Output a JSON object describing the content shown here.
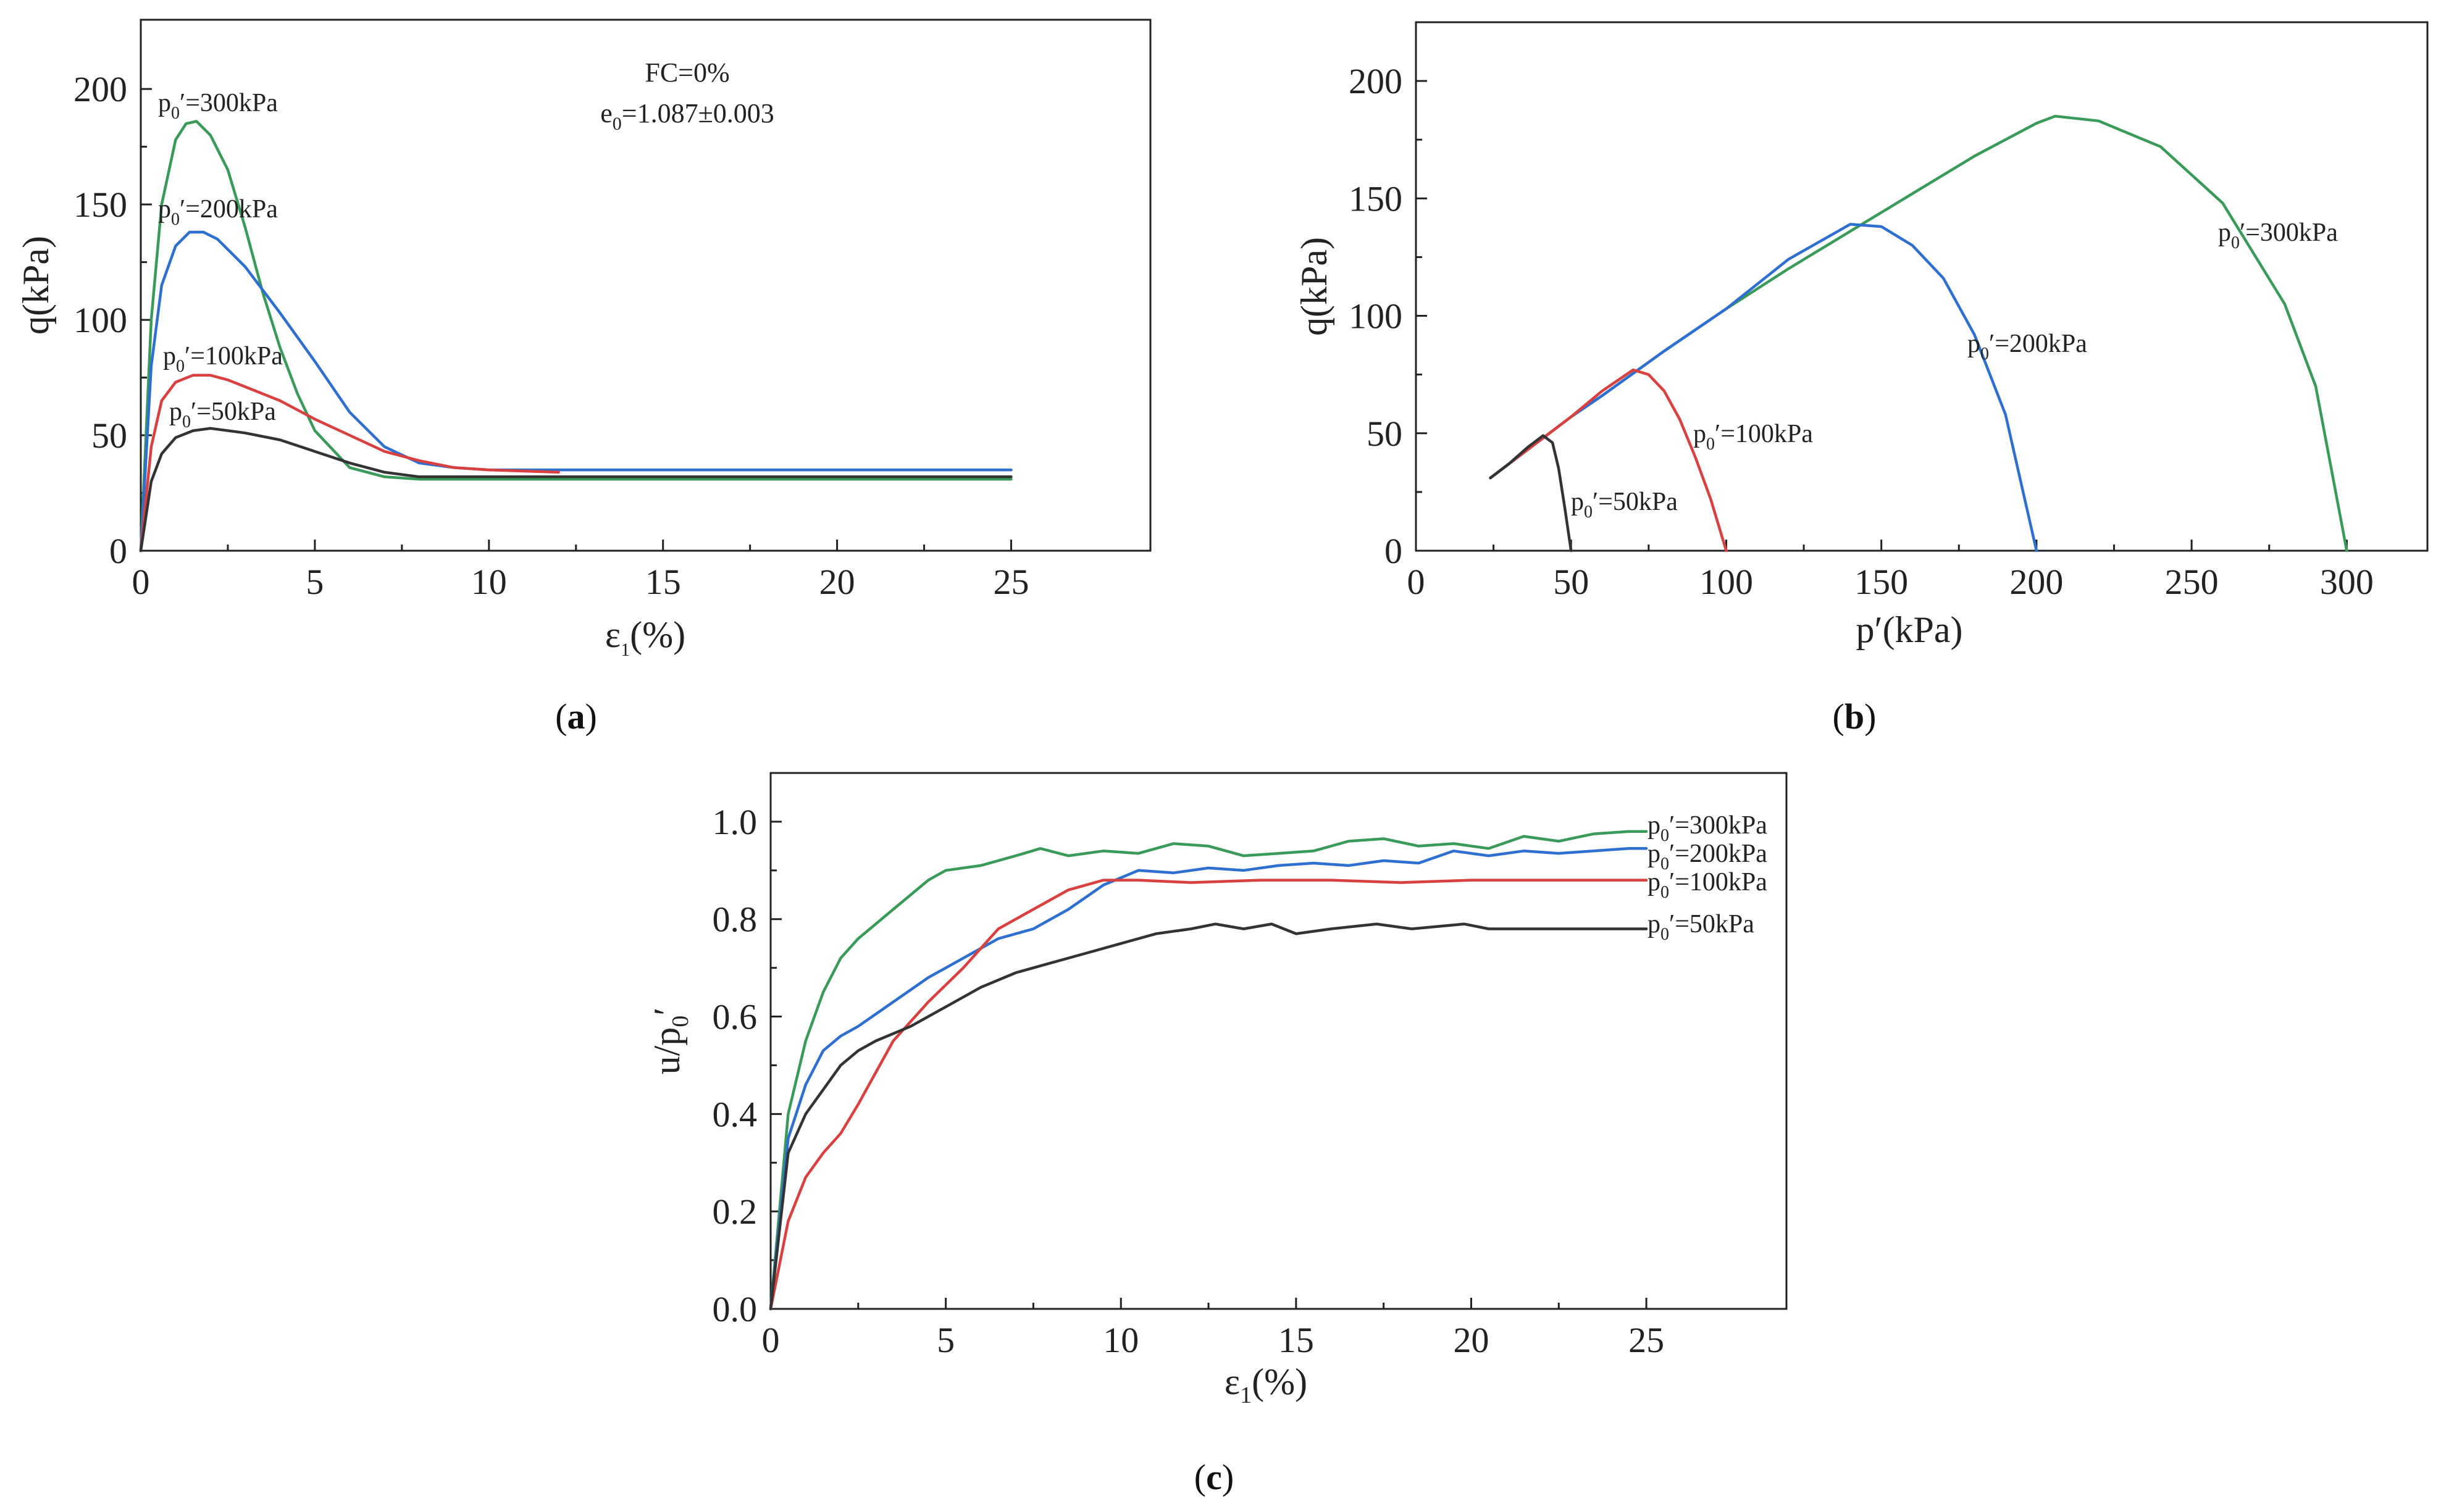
{
  "chart_data": [
    {
      "id": "a",
      "type": "line",
      "caption_letter": "a",
      "xlabel_main": "ε",
      "xlabel_sub": "1",
      "xlabel_tail": "(%)",
      "ylabel": "q(kPa)",
      "xlim": [
        0,
        29
      ],
      "ylim": [
        0,
        230
      ],
      "xticks": [
        0,
        5,
        10,
        15,
        20,
        25
      ],
      "yticks": [
        0,
        50,
        100,
        150,
        200
      ],
      "annotation_line1": "FC=0%",
      "annotation_line2_main": "e",
      "annotation_line2_sub": "0",
      "annotation_line2_tail": "=1.087±0.003",
      "series": [
        {
          "name": "p0'=300kPa",
          "label_main": "p",
          "label_sub": "0",
          "label_tail": "′=300kPa",
          "color": "#3a9a5a",
          "x": [
            0,
            0.3,
            0.6,
            1.0,
            1.3,
            1.6,
            2.0,
            2.5,
            3.0,
            3.5,
            4.0,
            4.5,
            5.0,
            6.0,
            7.0,
            8.0,
            10,
            15,
            20,
            25
          ],
          "y": [
            0,
            100,
            150,
            178,
            185,
            186,
            180,
            165,
            140,
            112,
            88,
            68,
            52,
            36,
            32,
            31,
            31,
            31,
            31,
            31
          ]
        },
        {
          "name": "p0'=200kPa",
          "label_main": "p",
          "label_sub": "0",
          "label_tail": "′=200kPa",
          "color": "#2e6fcf",
          "x": [
            0,
            0.3,
            0.6,
            1.0,
            1.4,
            1.8,
            2.2,
            3.0,
            4.0,
            5.0,
            6.0,
            7.0,
            8.0,
            9.0,
            10,
            12,
            15,
            20,
            25
          ],
          "y": [
            0,
            80,
            115,
            132,
            138,
            138,
            135,
            123,
            103,
            82,
            60,
            45,
            38,
            36,
            35,
            35,
            35,
            35,
            35
          ]
        },
        {
          "name": "p0'=100kPa",
          "label_main": "p",
          "label_sub": "0",
          "label_tail": "′=100kPa",
          "color": "#d94040",
          "x": [
            0,
            0.3,
            0.6,
            1.0,
            1.5,
            2.0,
            2.5,
            3.0,
            4.0,
            5.0,
            6.0,
            7.0,
            8.0,
            9.0,
            10,
            12
          ],
          "y": [
            0,
            45,
            65,
            73,
            76,
            76,
            74,
            71,
            65,
            57,
            50,
            43,
            39,
            36,
            35,
            34
          ]
        },
        {
          "name": "p0'=50kPa",
          "label_main": "p",
          "label_sub": "0",
          "label_tail": "′=50kPa",
          "color": "#333333",
          "x": [
            0,
            0.3,
            0.6,
            1.0,
            1.5,
            2.0,
            3.0,
            4.0,
            5.0,
            6.0,
            7.0,
            8.0,
            9.0,
            10,
            12,
            15,
            20,
            25
          ],
          "y": [
            0,
            30,
            42,
            49,
            52,
            53,
            51,
            48,
            43,
            38,
            34,
            32,
            32,
            32,
            32,
            32,
            32,
            32
          ]
        }
      ]
    },
    {
      "id": "b",
      "type": "line",
      "caption_letter": "b",
      "xlabel": "p′(kPa)",
      "ylabel": "q(kPa)",
      "xlim": [
        0,
        326
      ],
      "ylim": [
        0,
        225
      ],
      "xticks": [
        0,
        50,
        100,
        150,
        200,
        250,
        300
      ],
      "yticks": [
        0,
        50,
        100,
        150,
        200
      ],
      "series": [
        {
          "name": "p0'=300kPa",
          "label_main": "p",
          "label_sub": "0",
          "label_tail": "′=300kPa",
          "color": "#3a9a5a",
          "x": [
            24,
            30,
            40,
            50,
            60,
            80,
            100,
            120,
            140,
            160,
            180,
            200,
            206,
            220,
            240,
            260,
            280,
            290,
            300
          ],
          "y": [
            31,
            37,
            47,
            57,
            66,
            85,
            103,
            120,
            136,
            152,
            168,
            182,
            185,
            183,
            172,
            148,
            105,
            70,
            0
          ]
        },
        {
          "name": "p0'=200kPa",
          "label_main": "p",
          "label_sub": "0",
          "label_tail": "′=200kPa",
          "color": "#2e6fcf",
          "x": [
            24,
            30,
            40,
            50,
            60,
            80,
            100,
            120,
            140,
            150,
            160,
            170,
            180,
            190,
            200
          ],
          "y": [
            31,
            37,
            47,
            57,
            66,
            85,
            103,
            124,
            139,
            138,
            130,
            116,
            92,
            58,
            0
          ]
        },
        {
          "name": "p0'=100kPa",
          "label_main": "p",
          "label_sub": "0",
          "label_tail": "′=100kPa",
          "color": "#d94040",
          "x": [
            24,
            30,
            40,
            50,
            60,
            70,
            75,
            80,
            85,
            90,
            95,
            100
          ],
          "y": [
            31,
            37,
            47,
            57,
            68,
            77,
            75,
            68,
            56,
            40,
            22,
            0
          ]
        },
        {
          "name": "p0'=50kPa",
          "label_main": "p",
          "label_sub": "0",
          "label_tail": "′=50kPa",
          "color": "#333333",
          "x": [
            24,
            30,
            36,
            41,
            44,
            46,
            48,
            50
          ],
          "y": [
            31,
            37,
            44,
            49,
            46,
            35,
            18,
            0
          ]
        }
      ]
    },
    {
      "id": "c",
      "type": "line",
      "caption_letter": "c",
      "xlabel_main": "ε",
      "xlabel_sub": "1",
      "xlabel_tail": "(%)",
      "ylabel_main": "u/p",
      "ylabel_sub": "0",
      "ylabel_tail": "′",
      "xlim": [
        0,
        29
      ],
      "ylim": [
        0,
        1.1
      ],
      "xticks": [
        0,
        5,
        10,
        15,
        20,
        25
      ],
      "yticks": [
        0.0,
        0.2,
        0.4,
        0.6,
        0.8,
        1.0
      ],
      "ytick_labels": [
        "0.0",
        "0.2",
        "0.4",
        "0.6",
        "0.8",
        "1.0"
      ],
      "series": [
        {
          "name": "p0'=300kPa",
          "label_main": "p",
          "label_sub": "0",
          "label_tail": "′=300kPa",
          "color": "#3a9a5a",
          "x": [
            0,
            0.5,
            1.0,
            1.5,
            2.0,
            2.5,
            3.5,
            4.5,
            5.0,
            6.0,
            7.0,
            7.7,
            8.5,
            9.5,
            10.5,
            11.5,
            12.5,
            13.5,
            14.5,
            15.5,
            16.5,
            17.5,
            18.5,
            19.5,
            20.5,
            21.5,
            22.5,
            23.5,
            24.5,
            25
          ],
          "y": [
            0,
            0.4,
            0.55,
            0.65,
            0.72,
            0.76,
            0.82,
            0.88,
            0.9,
            0.91,
            0.93,
            0.945,
            0.93,
            0.94,
            0.935,
            0.955,
            0.95,
            0.93,
            0.935,
            0.94,
            0.96,
            0.965,
            0.95,
            0.955,
            0.945,
            0.97,
            0.96,
            0.975,
            0.98,
            0.98
          ]
        },
        {
          "name": "p0'=200kPa",
          "label_main": "p",
          "label_sub": "0",
          "label_tail": "′=200kPa",
          "color": "#2e6fcf",
          "x": [
            0,
            0.5,
            1.0,
            1.5,
            2.0,
            2.5,
            3.5,
            4.5,
            5.5,
            6.5,
            7.5,
            8.5,
            9.5,
            10.5,
            11.5,
            12.5,
            13.5,
            14.5,
            15.5,
            16.5,
            17.5,
            18.5,
            19.5,
            20.5,
            21.5,
            22.5,
            23.5,
            24.5,
            25
          ],
          "y": [
            0,
            0.35,
            0.46,
            0.53,
            0.56,
            0.58,
            0.63,
            0.68,
            0.72,
            0.76,
            0.78,
            0.82,
            0.87,
            0.9,
            0.895,
            0.905,
            0.9,
            0.91,
            0.915,
            0.91,
            0.92,
            0.915,
            0.94,
            0.93,
            0.94,
            0.935,
            0.94,
            0.945,
            0.945
          ]
        },
        {
          "name": "p0'=100kPa",
          "label_main": "p",
          "label_sub": "0",
          "label_tail": "′=100kPa",
          "color": "#d94040",
          "x": [
            0,
            0.5,
            1.0,
            1.5,
            2.0,
            2.5,
            3.5,
            4.5,
            5.5,
            6.5,
            7.5,
            8.5,
            9.5,
            10.5,
            12,
            14,
            16,
            18,
            20,
            22,
            25
          ],
          "y": [
            0,
            0.18,
            0.27,
            0.32,
            0.36,
            0.42,
            0.55,
            0.63,
            0.7,
            0.78,
            0.82,
            0.86,
            0.88,
            0.88,
            0.875,
            0.88,
            0.88,
            0.875,
            0.88,
            0.88,
            0.88
          ]
        },
        {
          "name": "p0'=50kPa",
          "label_main": "p",
          "label_sub": "0",
          "label_tail": "′=50kPa",
          "color": "#333333",
          "x": [
            0,
            0.5,
            1.0,
            1.5,
            2.0,
            2.5,
            3.0,
            4.0,
            5.0,
            6.0,
            7.0,
            8.0,
            9.0,
            10.0,
            11.0,
            12.0,
            12.7,
            13.5,
            14.3,
            15.0,
            16.0,
            17.3,
            18.3,
            19.8,
            20.5,
            22,
            25
          ],
          "y": [
            0,
            0.32,
            0.4,
            0.45,
            0.5,
            0.53,
            0.55,
            0.58,
            0.62,
            0.66,
            0.69,
            0.71,
            0.73,
            0.75,
            0.77,
            0.78,
            0.79,
            0.78,
            0.79,
            0.77,
            0.78,
            0.79,
            0.78,
            0.79,
            0.78,
            0.78,
            0.78
          ]
        }
      ]
    }
  ]
}
